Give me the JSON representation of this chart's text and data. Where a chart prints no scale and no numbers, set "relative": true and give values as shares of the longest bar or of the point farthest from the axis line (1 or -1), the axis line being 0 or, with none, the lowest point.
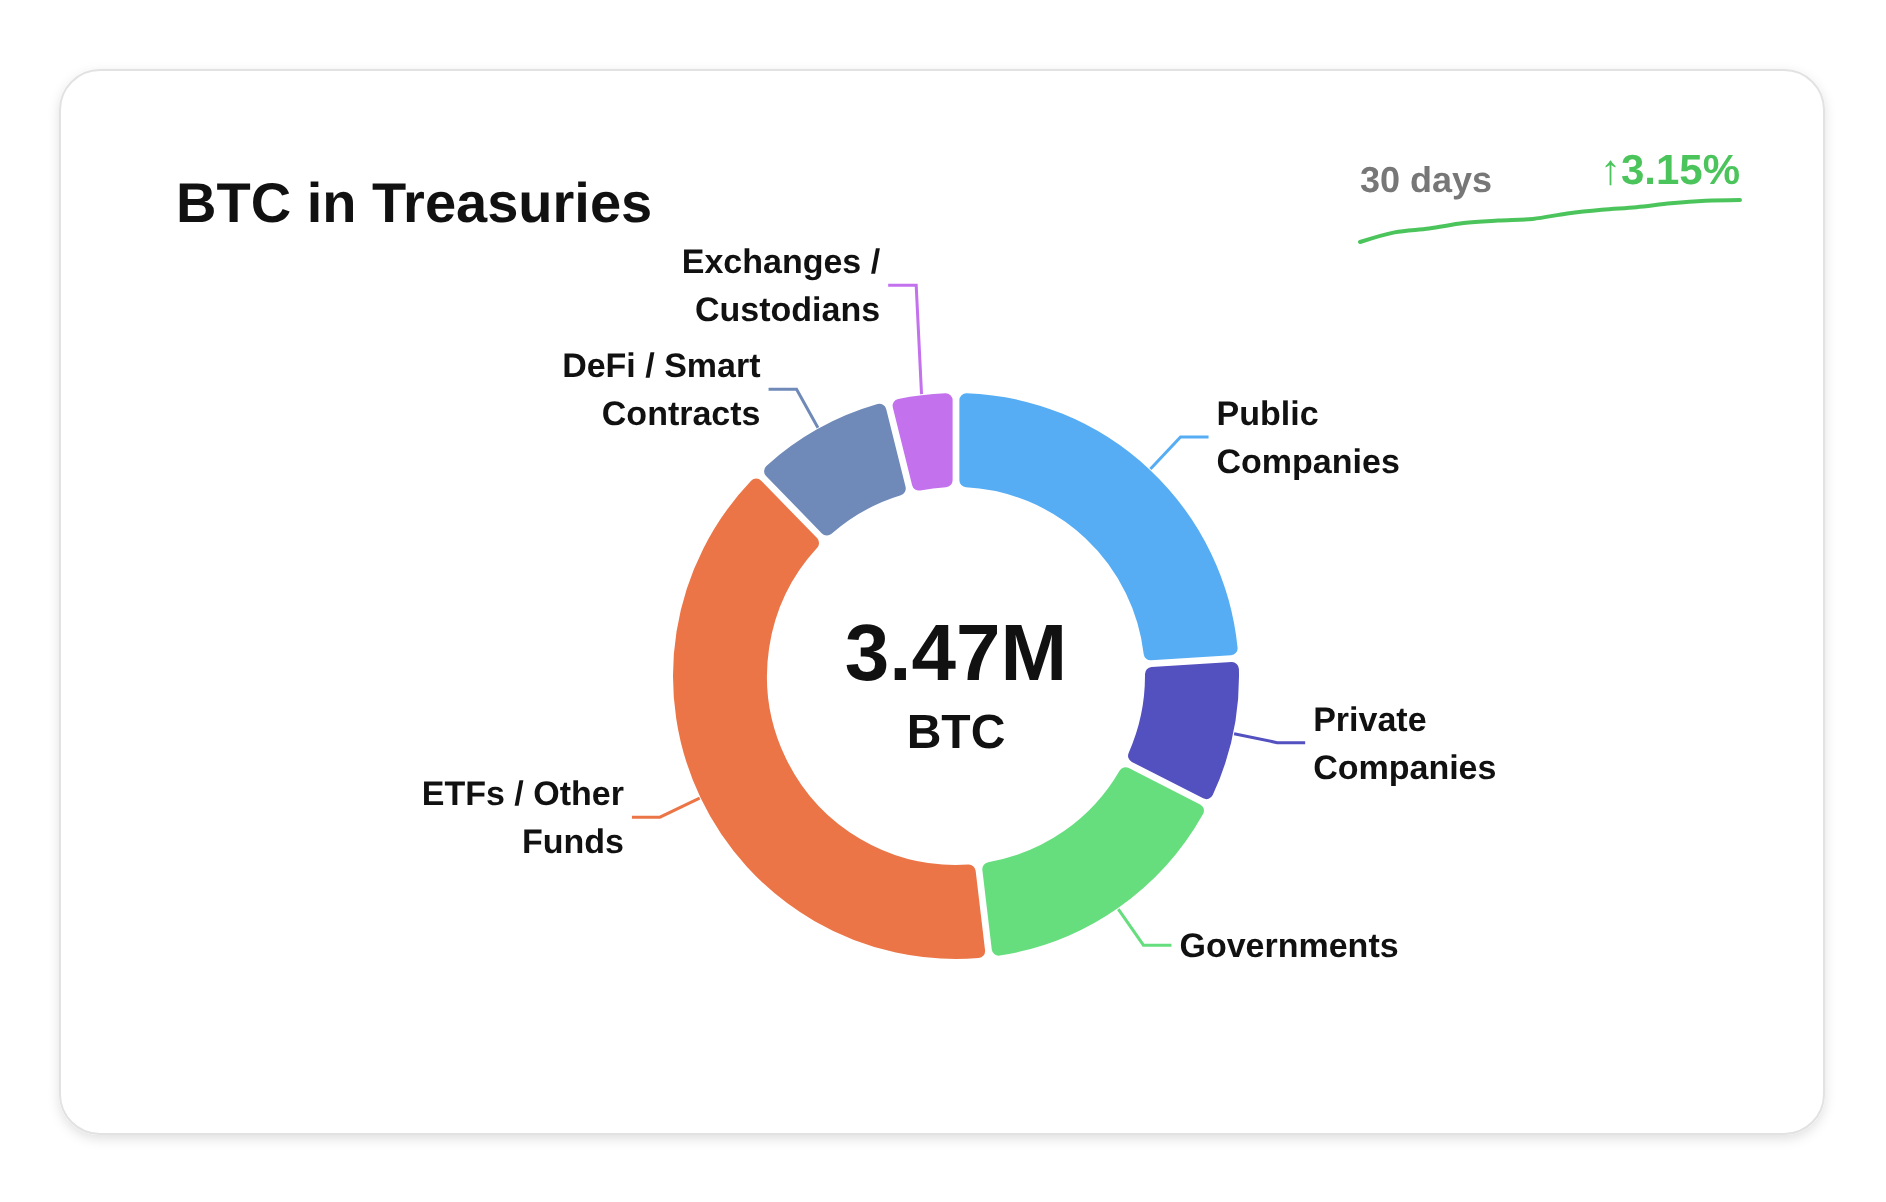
{
  "chart_data": [
    {
      "type": "donut",
      "title": "BTC in Treasuries",
      "categories": [
        "Public Companies",
        "Private Companies",
        "Governments",
        "ETFs / Other Funds",
        "DeFi / Smart Contracts",
        "Exchanges / Custodians"
      ],
      "values": [
        24.1,
        8.4,
        15.6,
        39.9,
        8.3,
        3.7
      ],
      "colors": [
        "#56adf4",
        "#5350c0",
        "#66de7e",
        "#ec7547",
        "#6f8ab8",
        "#c471ee"
      ],
      "annotations": [
        "3.47M",
        "BTC"
      ]
    },
    {
      "type": "line",
      "title": "30 days",
      "categories": [
        null,
        null,
        null,
        null,
        null,
        null,
        null,
        null,
        null,
        null,
        null,
        null
      ],
      "values": [
        0,
        0.23,
        0.32,
        0.45,
        0.51,
        0.55,
        0.68,
        0.77,
        0.83,
        0.92,
        0.98,
        1
      ],
      "relative": true,
      "color": "#4cc45c",
      "annotations": [
        "↑3.15%"
      ]
    }
  ]
}
